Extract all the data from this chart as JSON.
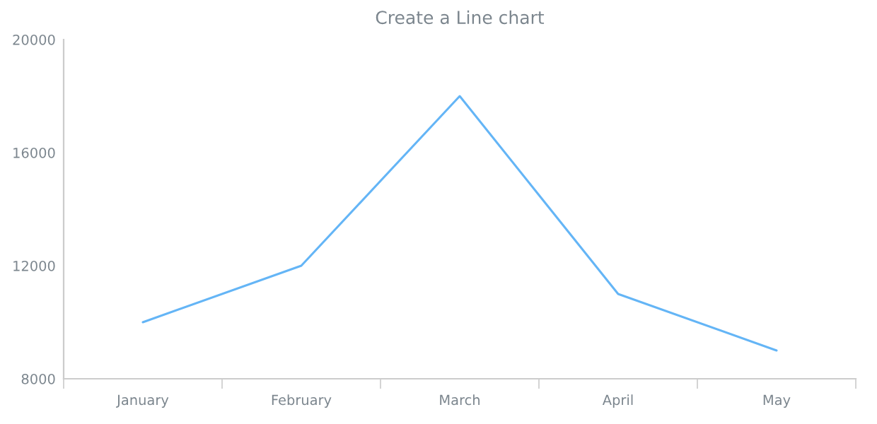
{
  "chart_data": {
    "type": "line",
    "title": "Create a Line chart",
    "categories": [
      "January",
      "February",
      "March",
      "April",
      "May"
    ],
    "series": [
      {
        "color": "#64b5f6",
        "values": [
          10000,
          12000,
          18000,
          11000,
          9000
        ]
      }
    ],
    "ylim": [
      8000,
      20000
    ],
    "yticks": [
      8000,
      12000,
      16000,
      20000
    ],
    "grid": false,
    "marker": "none",
    "line_style": "solid"
  }
}
